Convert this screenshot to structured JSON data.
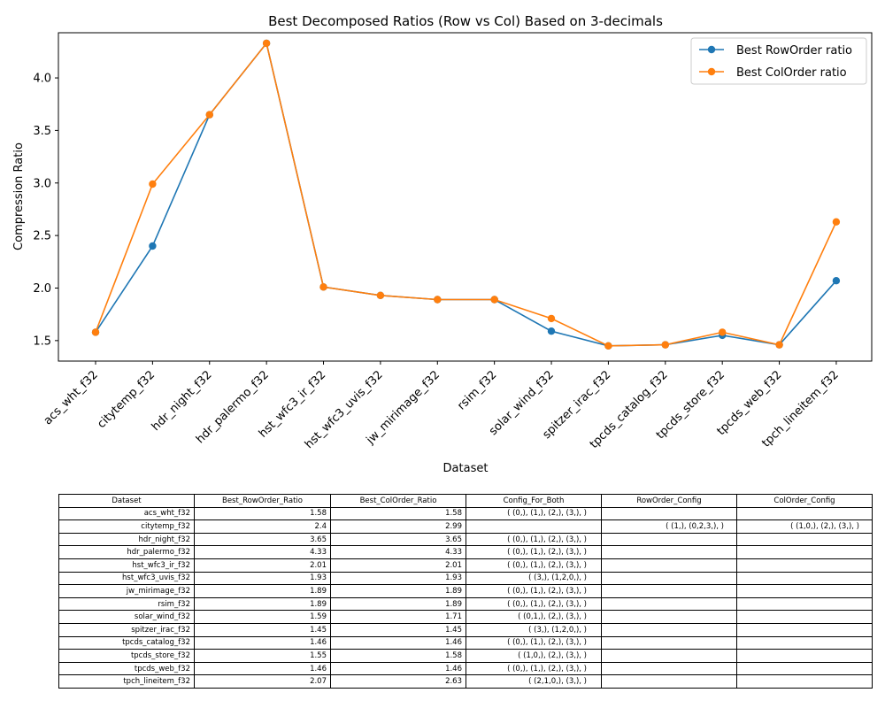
{
  "chart_data": {
    "type": "line",
    "title": "Best Decomposed Ratios (Row vs Col) Based on 3-decimals",
    "xlabel": "Dataset",
    "ylabel": "Compression Ratio",
    "categories": [
      "acs_wht_f32",
      "citytemp_f32",
      "hdr_night_f32",
      "hdr_palermo_f32",
      "hst_wfc3_ir_f32",
      "hst_wfc3_uvis_f32",
      "jw_mirimage_f32",
      "rsim_f32",
      "solar_wind_f32",
      "spitzer_irac_f32",
      "tpcds_catalog_f32",
      "tpcds_store_f32",
      "tpcds_web_f32",
      "tpch_lineitem_f32"
    ],
    "series": [
      {
        "name": "Best RowOrder ratio",
        "color": "#1f77b4",
        "values": [
          1.58,
          2.4,
          3.65,
          4.33,
          2.01,
          1.93,
          1.89,
          1.89,
          1.59,
          1.45,
          1.46,
          1.55,
          1.46,
          2.07
        ]
      },
      {
        "name": "Best ColOrder ratio",
        "color": "#ff7f0e",
        "values": [
          1.58,
          2.99,
          3.65,
          4.33,
          2.01,
          1.93,
          1.89,
          1.89,
          1.71,
          1.45,
          1.46,
          1.58,
          1.46,
          2.63
        ]
      }
    ],
    "ylim": [
      1.305,
      4.43
    ],
    "yticks": [
      "1.5",
      "2.0",
      "2.5",
      "3.0",
      "3.5",
      "4.0"
    ],
    "legend_position": "top-right",
    "grid": false
  },
  "table": {
    "headers": [
      "Dataset",
      "Best_RowOrder_Ratio",
      "Best_ColOrder_Ratio",
      "Config_For_Both",
      "RowOrder_Config",
      "ColOrder_Config"
    ],
    "rows": [
      [
        "acs_wht_f32",
        "1.58",
        "1.58",
        "( (0,), (1,), (2,), (3,), )",
        "",
        ""
      ],
      [
        "citytemp_f32",
        "2.4",
        "2.99",
        "",
        "( (1,), (0,2,3,), )",
        "( (1,0,), (2,), (3,), )"
      ],
      [
        "hdr_night_f32",
        "3.65",
        "3.65",
        "( (0,), (1,), (2,), (3,), )",
        "",
        ""
      ],
      [
        "hdr_palermo_f32",
        "4.33",
        "4.33",
        "( (0,), (1,), (2,), (3,), )",
        "",
        ""
      ],
      [
        "hst_wfc3_ir_f32",
        "2.01",
        "2.01",
        "( (0,), (1,), (2,), (3,), )",
        "",
        ""
      ],
      [
        "hst_wfc3_uvis_f32",
        "1.93",
        "1.93",
        "( (3,), (1,2,0,), )",
        "",
        ""
      ],
      [
        "jw_mirimage_f32",
        "1.89",
        "1.89",
        "( (0,), (1,), (2,), (3,), )",
        "",
        ""
      ],
      [
        "rsim_f32",
        "1.89",
        "1.89",
        "( (0,), (1,), (2,), (3,), )",
        "",
        ""
      ],
      [
        "solar_wind_f32",
        "1.59",
        "1.71",
        "( (0,1,), (2,), (3,), )",
        "",
        ""
      ],
      [
        "spitzer_irac_f32",
        "1.45",
        "1.45",
        "( (3,), (1,2,0,), )",
        "",
        ""
      ],
      [
        "tpcds_catalog_f32",
        "1.46",
        "1.46",
        "( (0,), (1,), (2,), (3,), )",
        "",
        ""
      ],
      [
        "tpcds_store_f32",
        "1.55",
        "1.58",
        "( (1,0,), (2,), (3,), )",
        "",
        ""
      ],
      [
        "tpcds_web_f32",
        "1.46",
        "1.46",
        "( (0,), (1,), (2,), (3,), )",
        "",
        ""
      ],
      [
        "tpch_lineitem_f32",
        "2.07",
        "2.63",
        "( (2,1,0,), (3,), )",
        "",
        ""
      ]
    ]
  }
}
